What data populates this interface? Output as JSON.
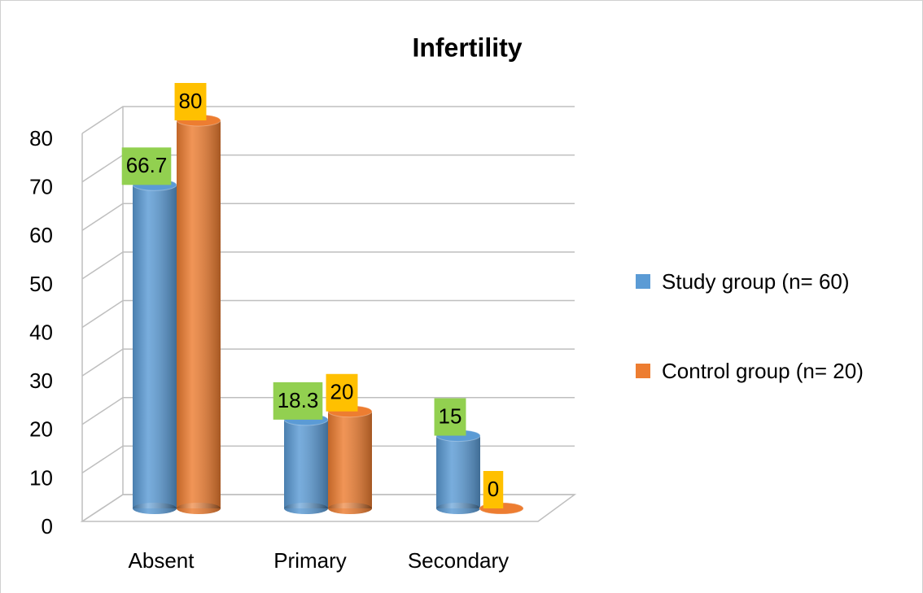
{
  "chart_data": {
    "type": "bar3d",
    "title": "Infertility",
    "categories": [
      "Absent",
      "Primary",
      "Secondary"
    ],
    "series": [
      {
        "name": "Study group (n= 60)",
        "color": "#5b9bd5",
        "label_color": "#92d050",
        "values": [
          66.7,
          18.3,
          15
        ]
      },
      {
        "name": "Control group (n= 20)",
        "color": "#ed7d31",
        "label_color": "#ffc000",
        "values": [
          80,
          20,
          0
        ]
      }
    ],
    "ylim": [
      0,
      80
    ],
    "yticks": [
      0,
      10,
      20,
      30,
      40,
      50,
      60,
      70,
      80
    ],
    "grid": true,
    "legend": "right"
  }
}
